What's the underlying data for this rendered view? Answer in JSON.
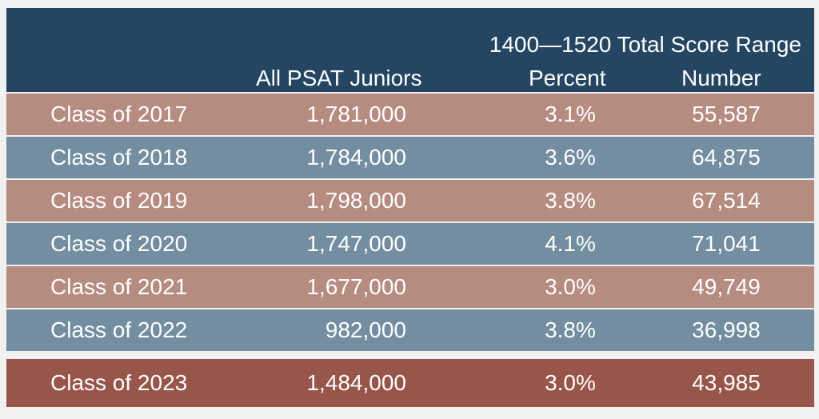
{
  "header": {
    "group_title": "1400—1520 Total Score Range",
    "all_label": "All PSAT Juniors",
    "percent_label": "Percent",
    "number_label": "Number"
  },
  "rows": [
    {
      "class": "Class of 2017",
      "all": "1,781,000",
      "percent": "3.1%",
      "number": "55,587"
    },
    {
      "class": "Class of 2018",
      "all": "1,784,000",
      "percent": "3.6%",
      "number": "64,875"
    },
    {
      "class": "Class of 2019",
      "all": "1,798,000",
      "percent": "3.8%",
      "number": "67,514"
    },
    {
      "class": "Class of 2020",
      "all": "1,747,000",
      "percent": "4.1%",
      "number": "71,041"
    },
    {
      "class": "Class of 2021",
      "all": "1,677,000",
      "percent": "3.0%",
      "number": "49,749"
    },
    {
      "class": "Class of 2022",
      "all": "982,000",
      "percent": "3.8%",
      "number": "36,998"
    },
    {
      "class": "Class of 2023",
      "all": "1,484,000",
      "percent": "3.0%",
      "number": "43,985"
    }
  ],
  "colors": {
    "header_bg": "#244663",
    "row_rose": "#b68b80",
    "row_blue": "#738ea1",
    "row_final": "#98564a"
  }
}
